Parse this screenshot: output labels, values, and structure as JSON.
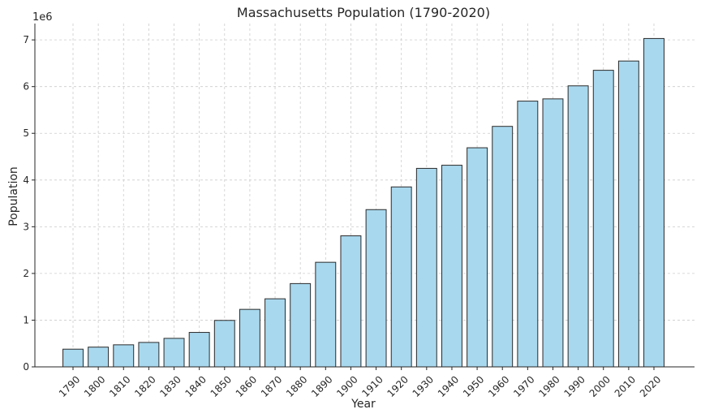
{
  "chart_data": {
    "type": "bar",
    "title": "Massachusetts Population (1790-2020)",
    "xlabel": "Year",
    "ylabel": "Population",
    "y_multiplier_label": "1e6",
    "categories": [
      "1790",
      "1800",
      "1810",
      "1820",
      "1830",
      "1840",
      "1850",
      "1860",
      "1870",
      "1880",
      "1890",
      "1900",
      "1910",
      "1920",
      "1930",
      "1940",
      "1950",
      "1960",
      "1970",
      "1980",
      "1990",
      "2000",
      "2010",
      "2020"
    ],
    "values": [
      378787,
      422845,
      472040,
      523287,
      610408,
      737699,
      994514,
      1231066,
      1457351,
      1783085,
      2238947,
      2805346,
      3366416,
      3852356,
      4249614,
      4316721,
      4690514,
      5148578,
      5689170,
      5737037,
      6016425,
      6349097,
      6547629,
      7029917
    ],
    "yticks": [
      0,
      1,
      2,
      3,
      4,
      5,
      6,
      7
    ],
    "ylim": [
      0,
      7350000
    ],
    "grid": true,
    "bar_color": "#a8d8ee",
    "edge_color": "#2b2b2b"
  }
}
